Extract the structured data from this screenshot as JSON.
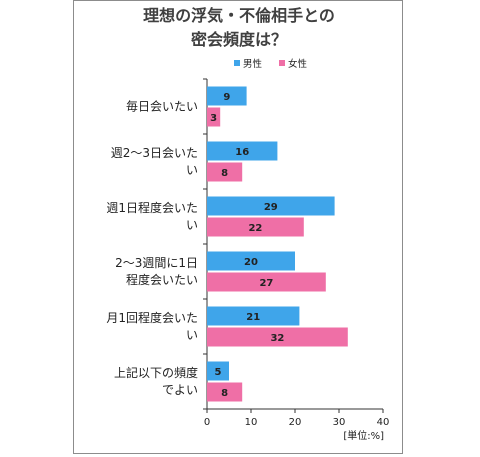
{
  "chart_data": {
    "type": "bar",
    "orientation": "horizontal",
    "title_lines": [
      "理想の浮気・不倫相手との",
      "密会頻度は？"
    ],
    "categories": [
      [
        "毎日会いたい"
      ],
      [
        "週2〜3日会いた",
        "い"
      ],
      [
        "週1日程度会いた",
        "い"
      ],
      [
        "2〜3週間に1日",
        "程度会いたい"
      ],
      [
        "月1回程度会いた",
        "い"
      ],
      [
        "上記以下の頻度",
        "でよい"
      ]
    ],
    "series": [
      {
        "name": "男性",
        "color": "#3fa5ea",
        "values": [
          9,
          16,
          29,
          20,
          21,
          5
        ]
      },
      {
        "name": "女性",
        "color": "#ef6fa6",
        "values": [
          3,
          8,
          22,
          27,
          32,
          8
        ]
      }
    ],
    "xlim": [
      0,
      40
    ],
    "xticks": [
      0,
      10,
      20,
      30,
      40
    ],
    "unit_label": "[単位:%]",
    "grid": false,
    "legend_position": "top"
  }
}
